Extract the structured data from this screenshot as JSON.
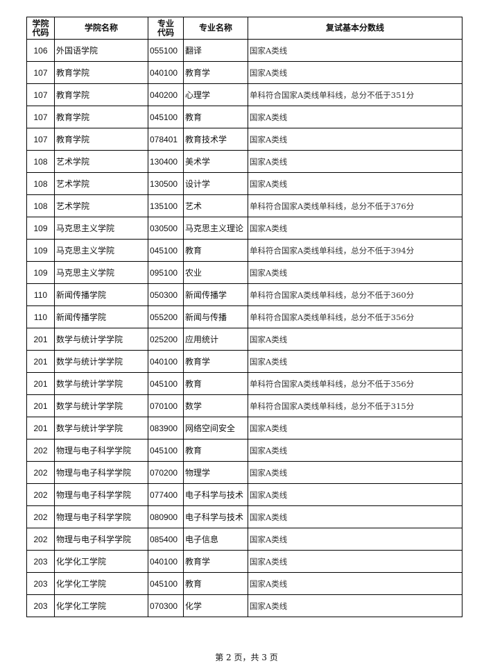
{
  "headers": [
    "学院\n代码",
    "学院名称",
    "专业\n代码",
    "专业名称",
    "复试基本分数线"
  ],
  "header_lines": {
    "c0a": "学院",
    "c0b": "代码",
    "c2a": "专业",
    "c2b": "代码"
  },
  "rows": [
    [
      "106",
      "外国语学院",
      "055100",
      "翻译",
      "国家A类线"
    ],
    [
      "107",
      "教育学院",
      "040100",
      "教育学",
      "国家A类线"
    ],
    [
      "107",
      "教育学院",
      "040200",
      "心理学",
      "单科符合国家A类线单科线，总分不低于351分"
    ],
    [
      "107",
      "教育学院",
      "045100",
      "教育",
      "国家A类线"
    ],
    [
      "107",
      "教育学院",
      "078401",
      "教育技术学",
      "国家A类线"
    ],
    [
      "108",
      "艺术学院",
      "130400",
      "美术学",
      "国家A类线"
    ],
    [
      "108",
      "艺术学院",
      "130500",
      "设计学",
      "国家A类线"
    ],
    [
      "108",
      "艺术学院",
      "135100",
      "艺术",
      "单科符合国家A类线单科线，总分不低于376分"
    ],
    [
      "109",
      "马克思主义学院",
      "030500",
      "马克思主义理论",
      "国家A类线"
    ],
    [
      "109",
      "马克思主义学院",
      "045100",
      "教育",
      "单科符合国家A类线单科线，总分不低于394分"
    ],
    [
      "109",
      "马克思主义学院",
      "095100",
      "农业",
      "国家A类线"
    ],
    [
      "110",
      "新闻传播学院",
      "050300",
      "新闻传播学",
      "单科符合国家A类线单科线，总分不低于360分"
    ],
    [
      "110",
      "新闻传播学院",
      "055200",
      "新闻与传播",
      "单科符合国家A类线单科线，总分不低于356分"
    ],
    [
      "201",
      "数学与统计学学院",
      "025200",
      "应用统计",
      "国家A类线"
    ],
    [
      "201",
      "数学与统计学学院",
      "040100",
      "教育学",
      "国家A类线"
    ],
    [
      "201",
      "数学与统计学学院",
      "045100",
      "教育",
      "单科符合国家A类线单科线，总分不低于356分"
    ],
    [
      "201",
      "数学与统计学学院",
      "070100",
      "数学",
      "单科符合国家A类线单科线，总分不低于315分"
    ],
    [
      "201",
      "数学与统计学学院",
      "083900",
      "网络空间安全",
      "国家A类线"
    ],
    [
      "202",
      "物理与电子科学学院",
      "045100",
      "教育",
      "国家A类线"
    ],
    [
      "202",
      "物理与电子科学学院",
      "070200",
      "物理学",
      "国家A类线"
    ],
    [
      "202",
      "物理与电子科学学院",
      "077400",
      "电子科学与技术",
      "国家A类线"
    ],
    [
      "202",
      "物理与电子科学学院",
      "080900",
      "电子科学与技术",
      "国家A类线"
    ],
    [
      "202",
      "物理与电子科学学院",
      "085400",
      "电子信息",
      "国家A类线"
    ],
    [
      "203",
      "化学化工学院",
      "040100",
      "教育学",
      "国家A类线"
    ],
    [
      "203",
      "化学化工学院",
      "045100",
      "教育",
      "国家A类线"
    ],
    [
      "203",
      "化学化工学院",
      "070300",
      "化学",
      "国家A类线"
    ]
  ],
  "footer": "第 2 页，共 3 页"
}
